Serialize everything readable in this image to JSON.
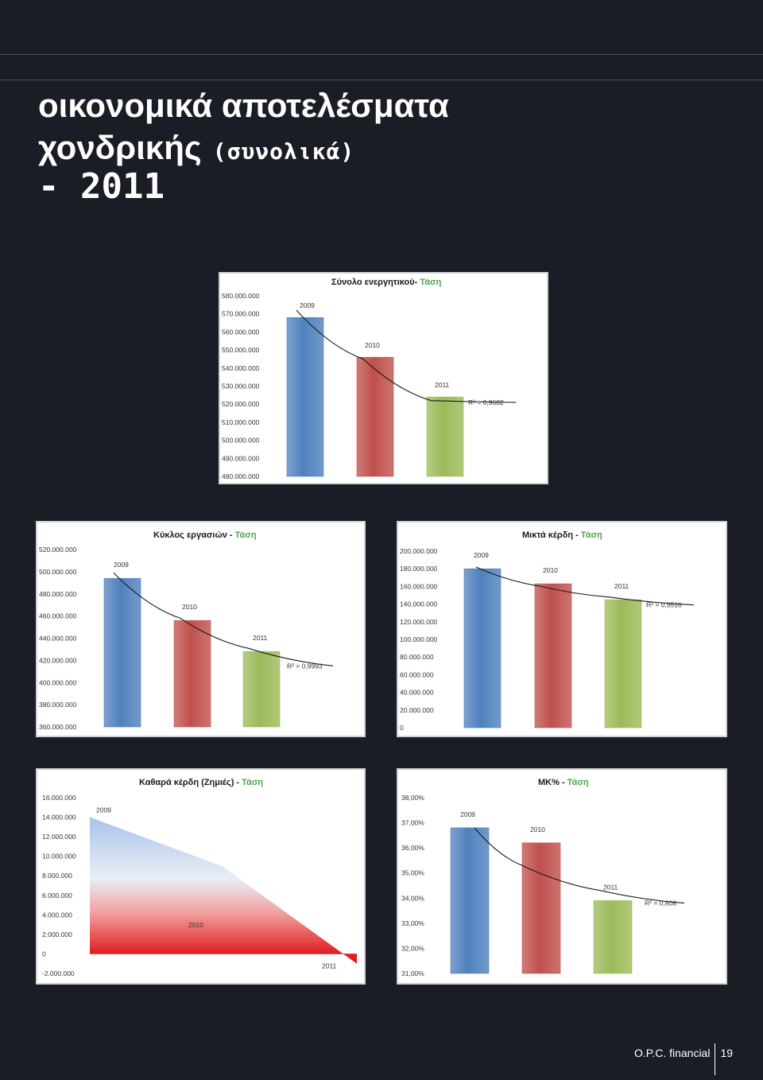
{
  "page": {
    "title_line1": "οικονομικά αποτελέσματα",
    "title_line2": "χονδρικής",
    "title_line2_small": "(συνολικά)",
    "title_line3": "- 2011",
    "footer_brand": "O.P.C. financial",
    "page_number": "19"
  },
  "colors": {
    "bar_2009": "#4f81bd",
    "bar_2010": "#c0504d",
    "bar_2011": "#9bbb59",
    "title_green": "#4ca64c",
    "trend": "#1a1a1a"
  },
  "chart_data": [
    {
      "id": "total-assets",
      "type": "bar",
      "title": "Σύνολο ενεργητικού",
      "title_sep": "- ",
      "title_suffix": "Τάση",
      "categories": [
        "2009",
        "2010",
        "2011"
      ],
      "values": [
        568000000,
        546000000,
        524000000
      ],
      "ylim": [
        480000000,
        580000000
      ],
      "yticks": [
        480000000,
        490000000,
        500000000,
        510000000,
        520000000,
        530000000,
        540000000,
        550000000,
        560000000,
        570000000,
        580000000
      ],
      "ytick_labels": [
        "480.000.000",
        "490.000.000",
        "500.000.000",
        "510.000.000",
        "520.000.000",
        "530.000.000",
        "540.000.000",
        "550.000.000",
        "560.000.000",
        "570.000.000",
        "580.000.000"
      ],
      "trend_values": [
        572000000,
        545000000,
        522000000,
        521000000
      ],
      "r2": "R² = 0,9682",
      "grid": false
    },
    {
      "id": "turnover",
      "type": "bar",
      "title": "Κύκλος εργασιών",
      "title_sep": " - ",
      "title_suffix": "Τάση",
      "categories": [
        "2009",
        "2010",
        "2011"
      ],
      "values": [
        494000000,
        456000000,
        428000000
      ],
      "ylim": [
        360000000,
        520000000
      ],
      "yticks": [
        360000000,
        380000000,
        400000000,
        420000000,
        440000000,
        460000000,
        480000000,
        500000000,
        520000000
      ],
      "ytick_labels": [
        "360.000.000",
        "380.000.000",
        "400.000.000",
        "420.000.000",
        "440.000.000",
        "460.000.000",
        "480.000.000",
        "500.000.000",
        "520.000.000"
      ],
      "trend_values": [
        499000000,
        458000000,
        431000000,
        415000000
      ],
      "r2": "R² = 0,9993",
      "grid": false
    },
    {
      "id": "gross-profit",
      "type": "bar",
      "title": "Μικτά κέρδη",
      "title_sep": " - ",
      "title_suffix": "Τάση",
      "categories": [
        "2009",
        "2010",
        "2011"
      ],
      "values": [
        180000000,
        163000000,
        145000000
      ],
      "ylim": [
        0,
        200000000
      ],
      "yticks": [
        0,
        20000000,
        40000000,
        60000000,
        80000000,
        100000000,
        120000000,
        140000000,
        160000000,
        180000000,
        200000000
      ],
      "ytick_labels": [
        "0",
        "20.000.000",
        "40.000.000",
        "60.000.000",
        "80.000.000",
        "100.000.000",
        "120.000.000",
        "140.000.000",
        "160.000.000",
        "180.000.000",
        "200.000.000"
      ],
      "trend_values": [
        182000000,
        160000000,
        148000000,
        139000000
      ],
      "r2": "R² = 0,9516",
      "grid": false
    },
    {
      "id": "net-profit",
      "type": "area",
      "title": "Καθαρά κέρδη (Ζημιές)",
      "title_sep": " - ",
      "title_suffix": "Τάση",
      "categories": [
        "2009",
        "2010",
        "2011"
      ],
      "values": [
        14000000,
        9000000,
        -1000000
      ],
      "ylim": [
        -2000000,
        16000000
      ],
      "yticks": [
        -2000000,
        0,
        2000000,
        4000000,
        6000000,
        8000000,
        10000000,
        12000000,
        14000000,
        16000000
      ],
      "ytick_labels": [
        "-2.000.000",
        "0",
        "2.000.000",
        "4.000.000",
        "6.000.000",
        "8.000.000",
        "10.000.000",
        "12.000.000",
        "14.000.000",
        "16.000.000"
      ],
      "grid": false
    },
    {
      "id": "gross-margin",
      "type": "bar",
      "title": "ΜΚ%",
      "title_sep": " - ",
      "title_suffix": "Τάση",
      "categories": [
        "2009",
        "2010",
        "2011"
      ],
      "values": [
        36.8,
        36.2,
        33.9
      ],
      "ylim": [
        31,
        38
      ],
      "yticks": [
        31,
        32,
        33,
        34,
        35,
        36,
        37,
        38
      ],
      "ytick_labels": [
        "31,00%",
        "32,00%",
        "33,00%",
        "34,00%",
        "35,00%",
        "36,00%",
        "37,00%",
        "38,00%"
      ],
      "trend_values": [
        36.8,
        35.3,
        34.3,
        33.8
      ],
      "r2": "R² = 0,808",
      "grid": false
    }
  ]
}
